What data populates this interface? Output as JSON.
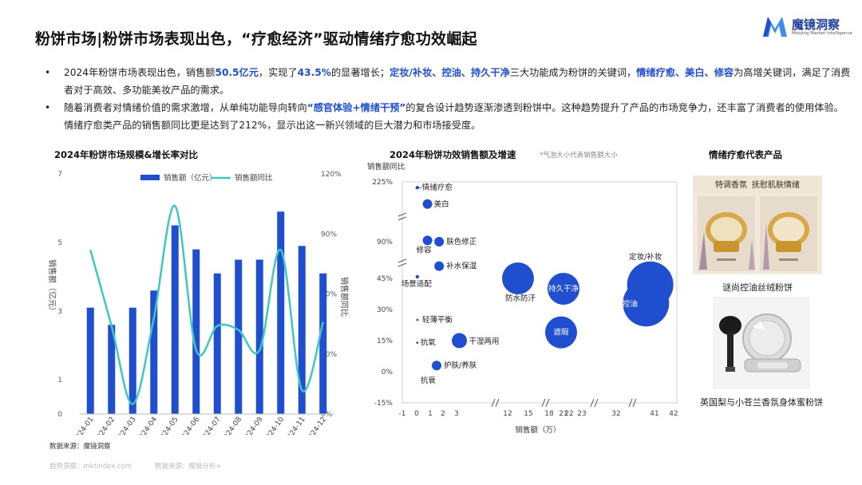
{
  "header": {
    "title": "粉饼市场|粉饼市场表现出色，“疗愈经济”驱动情绪疗愈功效崛起",
    "brand_name": "魔镜洞察",
    "brand_sub": "Moojing Market Intelligence",
    "brand_color": "#1f4fcf"
  },
  "bullets": [
    {
      "segments": [
        {
          "text": "2024年粉饼市场表现出色，销售额",
          "hl": false
        },
        {
          "text": "50.5亿元",
          "hl": true
        },
        {
          "text": "，实现了",
          "hl": false
        },
        {
          "text": "43.5%",
          "hl": true
        },
        {
          "text": "的显著增长；",
          "hl": false
        },
        {
          "text": "定妆/补妆、控油、持久干净",
          "hl": true
        },
        {
          "text": "三大功能成为粉饼的关键词，",
          "hl": false
        },
        {
          "text": "情绪疗愈、美白、修容",
          "hl": true
        },
        {
          "text": "为高增关键词，满足了消费者对于高效、多功能美妆产品的需求。",
          "hl": false
        }
      ]
    },
    {
      "segments": [
        {
          "text": "随着消费者对情绪价值的需求激增，从单纯功能导向转向",
          "hl": false
        },
        {
          "text": "“感官体验+情绪干预”",
          "hl": true
        },
        {
          "text": "的复合设计趋势逐渐渗透到粉饼中。这种趋势提升了产品的市场竞争力，还丰富了消费者的使用体验。情绪疗愈类产品的销售额同比更是达到了212%，显示出这一新兴领域的巨大潜力和市场接受度。",
          "hl": false
        }
      ]
    }
  ],
  "left_chart_title": "2024年粉饼市场规模&增长率对比",
  "middle_chart_title": "2024年粉饼功效销售额及增速",
  "middle_chart_note": "*气泡大小代表销售额大小",
  "products_title": "情绪疗愈代表产品",
  "products": [
    {
      "image_text_1": "特调香氛",
      "image_text_2": "抚慰肌肤情绪",
      "caption": "谜尚控油丝绒粉饼"
    },
    {
      "caption": "英国梨与小苍兰香氛身体蜜粉饼"
    }
  ],
  "source": "数据来源：魔镜洞察",
  "footer": [
    "趋势洞察：mktindex.com",
    "数据来源：魔镜分析+"
  ],
  "colors": {
    "bar": "#1f4fcf",
    "line": "#3ec8c0",
    "bubble": "#1f4fcf",
    "text_accent": "#1f4fcf"
  },
  "chart_data": [
    {
      "type": "bar",
      "categories": [
        "2024-01",
        "2024-02",
        "2024-03",
        "2024-04",
        "2024-05",
        "2024-06",
        "2024-07",
        "2024-08",
        "2024-09",
        "2024-10",
        "2024-11",
        "2024-12"
      ],
      "series": [
        {
          "name": "销售额（亿元）",
          "type": "bar",
          "axis": "left",
          "values": [
            3.1,
            2.6,
            3.1,
            3.6,
            5.5,
            4.8,
            4.1,
            4.5,
            4.5,
            5.9,
            4.9,
            4.1
          ]
        },
        {
          "name": "销售额同比",
          "type": "line",
          "axis": "right",
          "values": [
            82,
            44,
            5,
            48,
            104,
            32,
            44,
            42,
            32,
            82,
            12,
            46
          ]
        }
      ],
      "ylabel": "销售额（亿元）",
      "y2label": "销售额同比",
      "ylim": [
        0,
        7
      ],
      "y2lim": [
        0,
        120
      ],
      "yticks": [
        "1",
        "3",
        "5",
        "7"
      ],
      "y2ticks": [
        "0%",
        "30%",
        "60%",
        "90%",
        "120%"
      ],
      "y_zero_label": "0",
      "legend": "top"
    },
    {
      "type": "scatter",
      "xlabel": "销售额（万）",
      "ylabel": "销售额同比",
      "xticks": [
        "-1",
        "0",
        "1",
        "2",
        "3",
        "12",
        "15",
        "18",
        "21",
        "22",
        "23",
        "32",
        "41",
        "42"
      ],
      "yticks": [
        "-15%",
        "0%",
        "15%",
        "30%",
        "45%",
        "90%",
        "225%"
      ],
      "axis_breaks": true,
      "points": [
        {
          "label": "情绪疗愈",
          "x": 0.05,
          "y": 212,
          "size": "tiny"
        },
        {
          "label": "美白",
          "x": 0.8,
          "y": 175,
          "size": "small"
        },
        {
          "label": "肤色修正",
          "x": 1.7,
          "y": 90,
          "size": "small"
        },
        {
          "label": "修容",
          "x": 0.8,
          "y": 93,
          "size": "small"
        },
        {
          "label": "补水保湿",
          "x": 1.7,
          "y": 60,
          "size": "small"
        },
        {
          "label": "场景适配",
          "x": 0.05,
          "y": 47,
          "size": "tiny"
        },
        {
          "label": "防水防汗",
          "x": 13.5,
          "y": 45,
          "size": "large"
        },
        {
          "label": "持久干净",
          "x": 21,
          "y": 40,
          "size": "large"
        },
        {
          "label": "定妆/补妆",
          "x": 40,
          "y": 42,
          "size": "xlarge"
        },
        {
          "label": "控油",
          "x": 39,
          "y": 33,
          "size": "xlarge"
        },
        {
          "label": "轻薄平衡",
          "x": 0.05,
          "y": 25,
          "size": "dot"
        },
        {
          "label": "遮瑕",
          "x": 20.5,
          "y": 19,
          "size": "large"
        },
        {
          "label": "抗氧",
          "x": 0.05,
          "y": 14,
          "size": "dot"
        },
        {
          "label": "干湿两用",
          "x": 3.5,
          "y": 15,
          "size": "medium"
        },
        {
          "label": "护肤/养肤",
          "x": 1.5,
          "y": 3,
          "size": "small"
        },
        {
          "label": "抗衰",
          "x": 0.05,
          "y": 0,
          "size": "none"
        }
      ]
    }
  ]
}
